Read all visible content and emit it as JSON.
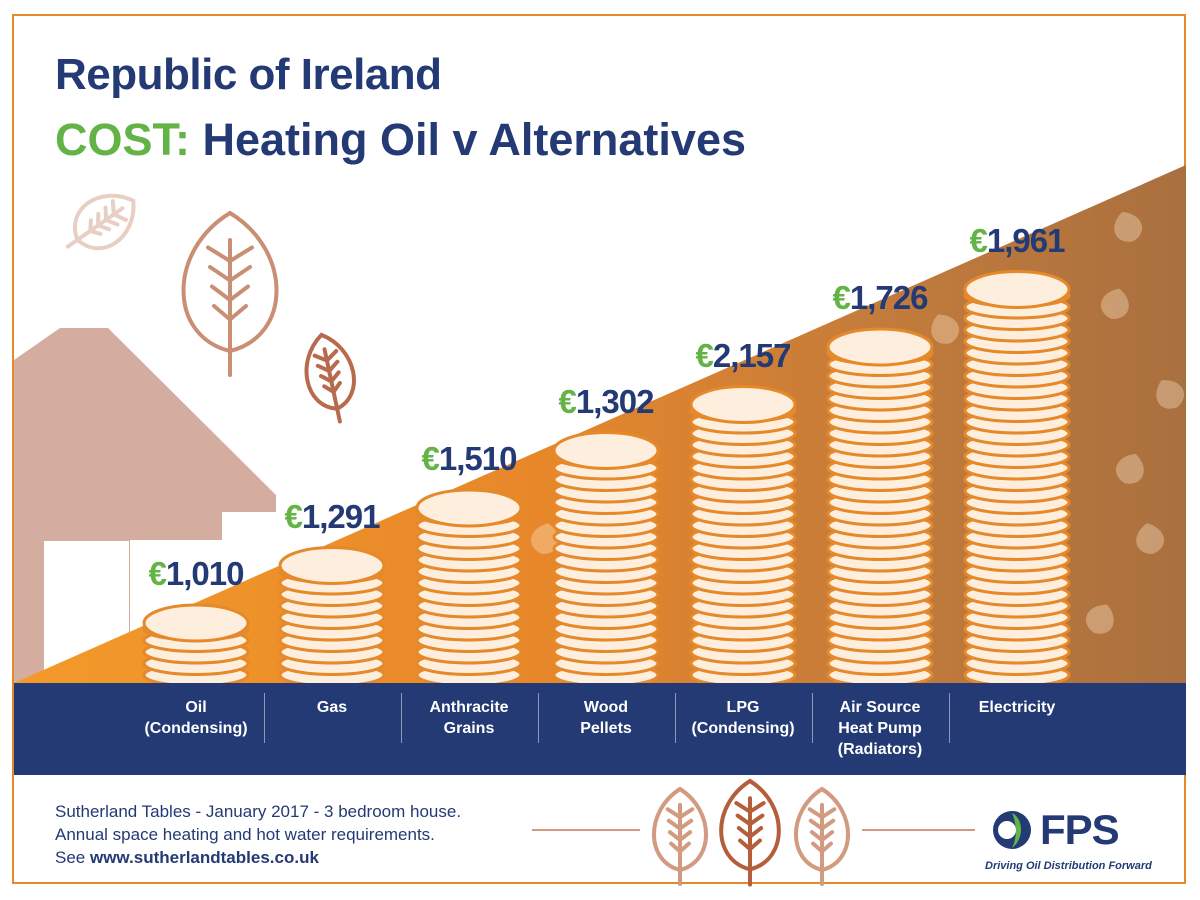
{
  "title": "Republic of Ireland",
  "subtitle_accent": "COST:",
  "subtitle_rest": " Heating Oil v Alternatives",
  "currency_symbol": "€",
  "footnote": {
    "line1": "Sutherland Tables - January 2017 - 3 bedroom house.",
    "line2": "Annual space heating and hot water requirements.",
    "line3_prefix": "See ",
    "line3_link": "www.sutherlandtables.co.uk"
  },
  "logo": {
    "name": "FPS",
    "tagline": "Driving Oil Distribution Forward"
  },
  "colors": {
    "navy": "#233a75",
    "green": "#64b346",
    "orange": "#f08a1c",
    "brown": "#b0723e",
    "house": "#d5ada0",
    "coin_stroke": "#e5892a"
  },
  "chart_data": {
    "type": "bar",
    "title": "Republic of Ireland",
    "subtitle": "COST: Heating Oil v Alternatives",
    "categories": [
      "Oil\n(Condensing)",
      "Gas",
      "Anthracite\nGrains",
      "Wood\nPellets",
      "LPG\n(Condensing)",
      "Air Source\nHeat Pump\n(Radiators)",
      "Electricity"
    ],
    "value_labels": [
      "€1,010",
      "€1,291",
      "€1,510",
      "€1,302",
      "€2,157",
      "€1,726",
      "€1,961"
    ],
    "values": [
      1010,
      1291,
      1510,
      1302,
      2157,
      1726,
      1961
    ],
    "coin_stack_layers": [
      5,
      10,
      15,
      20,
      24,
      29,
      34
    ],
    "unit": "€",
    "legend": "none",
    "grid": false
  }
}
